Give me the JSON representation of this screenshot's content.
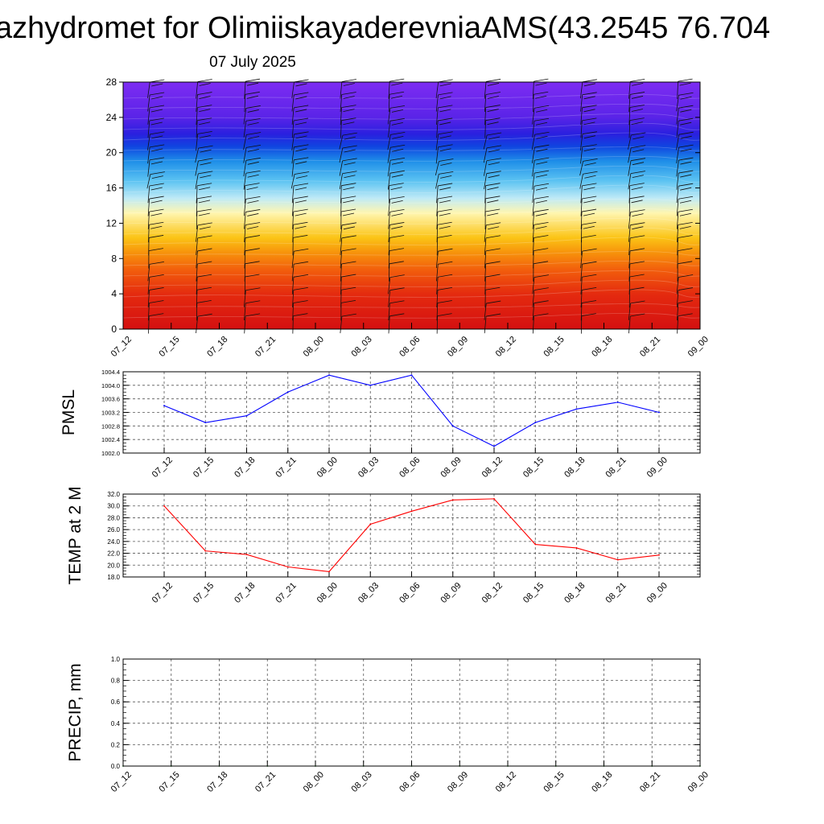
{
  "header": {
    "title": "azhydromet for OlimiiskayaderevniaAMS(43.2545 76.704",
    "subtitle": "07 July 2025"
  },
  "colors": {
    "pmsl_line": "#0000ff",
    "temp_line": "#ff0000",
    "precip_line": "#006400",
    "grid": "#555555"
  },
  "chart_data": [
    {
      "id": "crosssection",
      "type": "heatmap",
      "title": "",
      "ylabel": "",
      "xlabel": "",
      "ylim": [
        0,
        28
      ],
      "yticks": [
        0,
        4,
        8,
        12,
        16,
        20,
        24,
        28
      ],
      "x": [
        "07_12",
        "07_15",
        "07_18",
        "07_21",
        "08_00",
        "08_03",
        "08_06",
        "08_09",
        "08_12",
        "08_15",
        "08_18",
        "08_21",
        "09_00"
      ],
      "color_bands_bottom_to_top": [
        "#d41010",
        "#e42a0f",
        "#f25e0c",
        "#f7930b",
        "#fbc416",
        "#fff6b0",
        "#bfeaf6",
        "#5cc3f2",
        "#1e8ee8",
        "#1044e0",
        "#2a20df",
        "#5b24e8",
        "#7d2cf2"
      ],
      "wind_barbs": true
    },
    {
      "id": "pmsl",
      "type": "line",
      "ylabel": "PMSL",
      "ylim": [
        1002.0,
        1004.4
      ],
      "yticks": [
        "1002.0",
        "1002.4",
        "1002.8",
        "1003.2",
        "1003.6",
        "1004.0",
        "1004.4"
      ],
      "x": [
        "07_12",
        "07_15",
        "07_18",
        "07_21",
        "08_00",
        "08_03",
        "08_06",
        "08_09",
        "08_12",
        "08_15",
        "08_18",
        "08_21",
        "09_00"
      ],
      "series": [
        {
          "values": [
            1003.4,
            1002.9,
            1003.1,
            1003.8,
            1004.3,
            1004.0,
            1004.3,
            1002.8,
            1002.2,
            1002.9,
            1003.3,
            1003.5,
            1003.2
          ]
        }
      ],
      "grid": true
    },
    {
      "id": "temp",
      "type": "line",
      "ylabel": "TEMP at 2 M",
      "ylim": [
        18.0,
        32.0
      ],
      "yticks": [
        "18.0",
        "20.0",
        "22.0",
        "24.0",
        "26.0",
        "28.0",
        "30.0",
        "32.0"
      ],
      "x": [
        "07_12",
        "07_15",
        "07_18",
        "07_21",
        "08_00",
        "08_03",
        "08_06",
        "08_09",
        "08_12",
        "08_15",
        "08_18",
        "08_21",
        "09_00"
      ],
      "series": [
        {
          "values": [
            30.0,
            22.4,
            21.8,
            19.7,
            18.9,
            26.9,
            29.1,
            31.0,
            31.2,
            23.5,
            22.9,
            20.9,
            21.7
          ]
        }
      ],
      "grid": true
    },
    {
      "id": "precip",
      "type": "line",
      "ylabel": "PRECIP, mm",
      "ylim": [
        0.0,
        1.0
      ],
      "yticks": [
        "0.0",
        "0.2",
        "0.4",
        "0.6",
        "0.8",
        "1.0"
      ],
      "x": [
        "07_12",
        "07_15",
        "07_18",
        "07_21",
        "08_00",
        "08_03",
        "08_06",
        "08_09",
        "08_12",
        "08_15",
        "08_18",
        "08_21",
        "09_00"
      ],
      "series": [
        {
          "values": [
            0,
            0,
            0,
            0,
            0,
            0,
            0,
            0,
            0,
            0,
            0,
            0,
            0
          ]
        }
      ],
      "grid": true
    }
  ]
}
